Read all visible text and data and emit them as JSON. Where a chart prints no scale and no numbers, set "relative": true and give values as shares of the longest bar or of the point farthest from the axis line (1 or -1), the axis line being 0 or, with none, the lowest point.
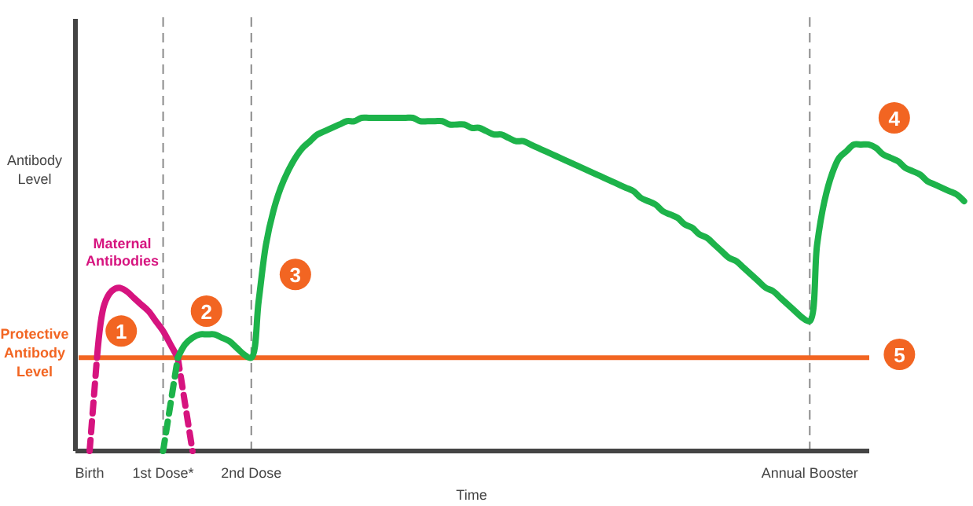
{
  "chart_data": {
    "type": "line",
    "relative": true,
    "ylabel": "Antibody Level",
    "xlabel": "Time",
    "categories": [
      "Birth",
      null,
      null,
      null,
      null,
      null,
      null,
      null,
      null,
      null,
      "1st Dose*",
      null,
      null,
      null,
      null,
      null,
      null,
      null,
      null,
      null,
      null,
      null,
      "2nd Dose",
      null,
      null,
      null,
      null,
      null,
      null,
      null,
      null,
      null,
      null,
      null,
      null,
      null,
      null,
      null,
      null,
      null,
      null,
      null,
      null,
      null,
      null,
      null,
      null,
      null,
      null,
      null,
      null,
      null,
      null,
      null,
      null,
      null,
      null,
      null,
      null,
      null,
      null,
      null,
      null,
      null,
      null,
      null,
      null,
      null,
      null,
      null,
      null,
      null,
      null,
      null,
      null,
      null,
      null,
      null,
      null,
      null,
      null,
      null,
      null,
      null,
      null,
      null,
      null,
      null,
      null,
      null,
      null,
      null,
      null,
      null,
      null,
      null,
      null,
      null,
      "Annual Booster",
      null,
      null,
      null,
      null,
      null,
      null,
      null,
      null,
      null,
      null,
      null,
      null,
      null,
      null,
      null,
      null,
      null,
      null,
      null,
      null,
      null
    ],
    "grid": false,
    "legend": false,
    "marker": "none",
    "series": [
      {
        "name": "Maternal Antibodies",
        "color": "#d6147f",
        "line_style": "solid",
        "values": [
          null,
          0.28,
          0.44,
          0.48,
          0.49,
          0.48,
          0.46,
          0.44,
          0.42,
          0.39,
          0.36,
          0.32,
          0.28,
          null,
          null,
          null,
          null,
          null,
          null,
          null,
          null,
          null,
          null,
          null,
          null,
          null,
          null,
          null,
          null,
          null,
          null,
          null,
          null,
          null,
          null,
          null,
          null,
          null,
          null,
          null,
          null,
          null,
          null,
          null,
          null,
          null,
          null,
          null,
          null,
          null,
          null,
          null,
          null,
          null,
          null,
          null,
          null,
          null,
          null,
          null,
          null,
          null,
          null,
          null,
          null,
          null,
          null,
          null,
          null,
          null,
          null,
          null,
          null,
          null,
          null,
          null,
          null,
          null,
          null,
          null,
          null,
          null,
          null,
          null,
          null,
          null,
          null,
          null,
          null,
          null,
          null,
          null,
          null,
          null,
          null,
          null,
          null,
          null,
          null,
          null,
          null,
          null,
          null,
          null,
          null,
          null,
          null,
          null,
          null,
          null,
          null,
          null,
          null,
          null,
          null,
          null,
          null,
          null,
          null,
          null
        ]
      },
      {
        "color": "#d6147f",
        "line_style": "dashed",
        "values": [
          0,
          0.28,
          null,
          null,
          null,
          null,
          null,
          null,
          null,
          null,
          null,
          null,
          null,
          null,
          null,
          null,
          null,
          null,
          null,
          null,
          null,
          null,
          null,
          null,
          null,
          null,
          null,
          null,
          null,
          null,
          null,
          null,
          null,
          null,
          null,
          null,
          null,
          null,
          null,
          null,
          null,
          null,
          null,
          null,
          null,
          null,
          null,
          null,
          null,
          null,
          null,
          null,
          null,
          null,
          null,
          null,
          null,
          null,
          null,
          null,
          null,
          null,
          null,
          null,
          null,
          null,
          null,
          null,
          null,
          null,
          null,
          null,
          null,
          null,
          null,
          null,
          null,
          null,
          null,
          null,
          null,
          null,
          null,
          null,
          null,
          null,
          null,
          null,
          null,
          null,
          null,
          null,
          null,
          null,
          null,
          null,
          null,
          null,
          null,
          null,
          null,
          null,
          null,
          null,
          null,
          null,
          null,
          null,
          null,
          null,
          null,
          null,
          null,
          null,
          null,
          null,
          null,
          null,
          null,
          null
        ]
      },
      {
        "color": "#d6147f",
        "line_style": "dashed",
        "values": [
          null,
          null,
          null,
          null,
          null,
          null,
          null,
          null,
          null,
          null,
          null,
          null,
          0.28,
          0.14,
          0,
          null,
          null,
          null,
          null,
          null,
          null,
          null,
          null,
          null,
          null,
          null,
          null,
          null,
          null,
          null,
          null,
          null,
          null,
          null,
          null,
          null,
          null,
          null,
          null,
          null,
          null,
          null,
          null,
          null,
          null,
          null,
          null,
          null,
          null,
          null,
          null,
          null,
          null,
          null,
          null,
          null,
          null,
          null,
          null,
          null,
          null,
          null,
          null,
          null,
          null,
          null,
          null,
          null,
          null,
          null,
          null,
          null,
          null,
          null,
          null,
          null,
          null,
          null,
          null,
          null,
          null,
          null,
          null,
          null,
          null,
          null,
          null,
          null,
          null,
          null,
          null,
          null,
          null,
          null,
          null,
          null,
          null,
          null,
          null,
          null,
          null,
          null,
          null,
          null,
          null,
          null,
          null,
          null,
          null,
          null,
          null,
          null,
          null,
          null,
          null,
          null,
          null,
          null,
          null,
          null
        ]
      },
      {
        "color": "#1db34a",
        "line_style": "dashed",
        "values": [
          null,
          null,
          null,
          null,
          null,
          null,
          null,
          null,
          null,
          null,
          0,
          0.14,
          0.28,
          null,
          null,
          null,
          null,
          null,
          null,
          null,
          null,
          null,
          null,
          null,
          null,
          null,
          null,
          null,
          null,
          null,
          null,
          null,
          null,
          null,
          null,
          null,
          null,
          null,
          null,
          null,
          null,
          null,
          null,
          null,
          null,
          null,
          null,
          null,
          null,
          null,
          null,
          null,
          null,
          null,
          null,
          null,
          null,
          null,
          null,
          null,
          null,
          null,
          null,
          null,
          null,
          null,
          null,
          null,
          null,
          null,
          null,
          null,
          null,
          null,
          null,
          null,
          null,
          null,
          null,
          null,
          null,
          null,
          null,
          null,
          null,
          null,
          null,
          null,
          null,
          null,
          null,
          null,
          null,
          null,
          null,
          null,
          null,
          null,
          null,
          null,
          null,
          null,
          null,
          null,
          null,
          null,
          null,
          null,
          null,
          null,
          null,
          null,
          null,
          null,
          null,
          null,
          null,
          null,
          null,
          null
        ]
      },
      {
        "color": "#1db34a",
        "line_style": "solid",
        "values": [
          null,
          null,
          null,
          null,
          null,
          null,
          null,
          null,
          null,
          null,
          null,
          null,
          0.28,
          0.32,
          0.34,
          0.35,
          0.35,
          0.35,
          0.34,
          0.33,
          0.31,
          0.29,
          0.28,
          0.45,
          0.62,
          0.72,
          0.79,
          0.84,
          0.88,
          0.91,
          0.93,
          0.95,
          0.96,
          0.97,
          0.98,
          0.99,
          0.99,
          1.0,
          1.0,
          1.0,
          1.0,
          1.0,
          1.0,
          1.0,
          1.0,
          0.99,
          0.99,
          0.99,
          0.99,
          0.98,
          0.98,
          0.98,
          0.97,
          0.97,
          0.96,
          0.95,
          0.95,
          0.94,
          0.93,
          0.93,
          0.92,
          0.91,
          0.9,
          0.89,
          0.88,
          0.87,
          0.86,
          0.85,
          0.84,
          0.83,
          0.82,
          0.81,
          0.8,
          0.79,
          0.78,
          0.76,
          0.75,
          0.74,
          0.72,
          0.71,
          0.7,
          0.68,
          0.67,
          0.65,
          0.64,
          0.62,
          0.6,
          0.58,
          0.57,
          0.55,
          0.53,
          0.51,
          0.49,
          0.48,
          0.46,
          0.44,
          0.42,
          0.4,
          0.39,
          0.62,
          0.75,
          0.83,
          0.88,
          0.9,
          0.92,
          0.92,
          0.92,
          0.91,
          0.89,
          0.88,
          0.87,
          0.85,
          0.84,
          0.83,
          0.81,
          0.8,
          0.79,
          0.78,
          0.77,
          0.75
        ]
      }
    ],
    "ref_lines": [
      {
        "axis": "y",
        "value": 0.28,
        "label": "Protective Antibody Level",
        "color": "#f26522",
        "line_style": "solid"
      },
      {
        "axis": "x",
        "value": "1st Dose*",
        "color": "#8a8a8a",
        "line_style": "dashed"
      },
      {
        "axis": "x",
        "value": "2nd Dose",
        "color": "#8a8a8a",
        "line_style": "dashed"
      },
      {
        "axis": "x",
        "value": "Annual Booster",
        "color": "#8a8a8a",
        "line_style": "dashed"
      }
    ],
    "annotations": [
      {
        "text": "1",
        "y": 0.36
      },
      {
        "text": "2",
        "y": 0.42
      },
      {
        "text": "3",
        "y": 0.53
      },
      {
        "text": "4",
        "y": 1.0
      },
      {
        "text": "5",
        "y": 0.29
      }
    ]
  }
}
